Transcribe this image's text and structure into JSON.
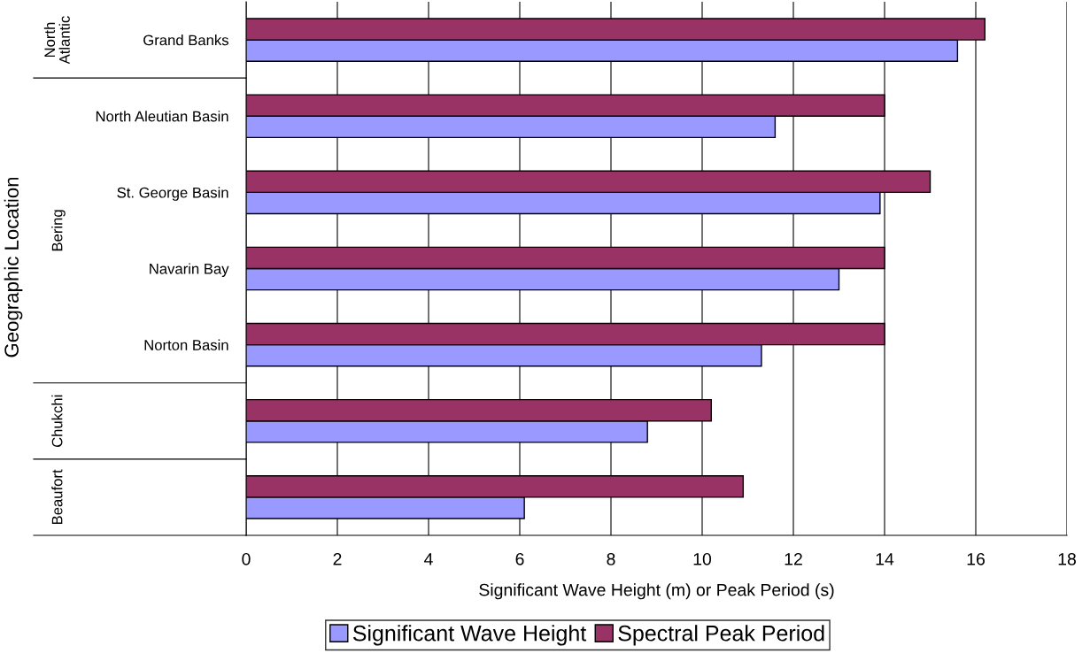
{
  "chart_data": {
    "type": "bar",
    "orientation": "horizontal",
    "xlabel": "Significant Wave Height (m) or Peak Period (s)",
    "ylabel": "Geographic Location",
    "categories": [
      "Grand Banks",
      "North Aleutian Basin",
      "St. George Basin",
      "Navarin Bay",
      "Norton Basin",
      null,
      null
    ],
    "series": [
      {
        "name": "Significant Wave Height",
        "color": "#9999ff",
        "values": [
          15.6,
          11.6,
          13.9,
          13.0,
          11.3,
          8.8,
          6.1
        ]
      },
      {
        "name": "Spectral Peak Period",
        "color": "#993366",
        "values": [
          16.2,
          14.0,
          15.0,
          14.0,
          14.0,
          10.2,
          10.9
        ]
      }
    ],
    "annotations": [
      "North\nAtlantic",
      "Bering",
      "Chukchi",
      "Beaufort"
    ],
    "xlim": [
      0,
      18
    ],
    "xticks": [
      0,
      2,
      4,
      6,
      8,
      10,
      12,
      14,
      16,
      18
    ],
    "grid": "x",
    "legend": "bottom"
  }
}
